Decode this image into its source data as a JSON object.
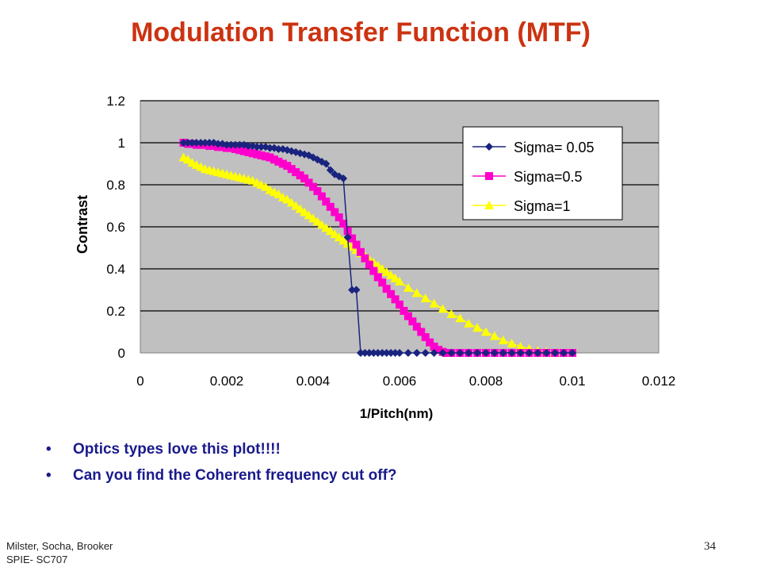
{
  "slide": {
    "title": "Modulation Transfer Function (MTF)",
    "bullets": [
      "Optics types love this plot!!!!",
      "Can you find the Coherent frequency cut off?"
    ],
    "footer_lines": [
      "Milster, Socha, Brooker",
      "SPIE- SC707"
    ],
    "page_number": "34"
  },
  "colors": {
    "title": "#cc3311",
    "bullet_text": "#1a1a8c",
    "plot_background": "#c0c0c0"
  },
  "chart_data": {
    "type": "line",
    "title": "",
    "xlabel": "1/Pitch(nm)",
    "ylabel": "Contrast",
    "xlim": [
      0,
      0.012
    ],
    "ylim": [
      0,
      1.2
    ],
    "xticks": [
      "0",
      "0.002",
      "0.004",
      "0.006",
      "0.008",
      "0.01",
      "0.012"
    ],
    "yticks": [
      "0",
      "0.2",
      "0.4",
      "0.6",
      "0.8",
      "1",
      "1.2"
    ],
    "grid": true,
    "legend_position": "top-right",
    "series": [
      {
        "name": "Sigma= 0.05",
        "color": "#1a237e",
        "marker": "diamond",
        "x": [
          0.001,
          0.0011,
          0.0012,
          0.0013,
          0.0014,
          0.0015,
          0.0016,
          0.0017,
          0.0018,
          0.0019,
          0.002,
          0.0021,
          0.0022,
          0.0023,
          0.0024,
          0.0025,
          0.0026,
          0.0027,
          0.0028,
          0.0029,
          0.003,
          0.0031,
          0.0032,
          0.0033,
          0.0034,
          0.0035,
          0.0036,
          0.0037,
          0.0038,
          0.0039,
          0.004,
          0.0041,
          0.0042,
          0.0043,
          0.0044,
          0.0045,
          0.0046,
          0.0047,
          0.0048,
          0.0049,
          0.005,
          0.0051,
          0.0052,
          0.0053,
          0.0054,
          0.0055,
          0.0056,
          0.0057,
          0.0058,
          0.0059,
          0.006,
          0.0062,
          0.0064,
          0.0066,
          0.0068,
          0.007,
          0.0072,
          0.0074,
          0.0076,
          0.0078,
          0.008,
          0.0082,
          0.0084,
          0.0086,
          0.0088,
          0.009,
          0.0092,
          0.0094,
          0.0096,
          0.0098,
          0.01
        ],
        "y": [
          1,
          1,
          1,
          1,
          1,
          1,
          1,
          1,
          0.995,
          0.995,
          0.99,
          0.99,
          0.99,
          0.99,
          0.99,
          0.985,
          0.985,
          0.98,
          0.98,
          0.98,
          0.975,
          0.975,
          0.97,
          0.97,
          0.965,
          0.96,
          0.955,
          0.95,
          0.945,
          0.94,
          0.93,
          0.92,
          0.91,
          0.9,
          0.87,
          0.85,
          0.84,
          0.83,
          0.55,
          0.3,
          0.3,
          0,
          0,
          0,
          0,
          0,
          0,
          0,
          0,
          0,
          0,
          0,
          0,
          0,
          0,
          0,
          0,
          0,
          0,
          0,
          0,
          0,
          0,
          0,
          0,
          0,
          0,
          0,
          0,
          0,
          0
        ]
      },
      {
        "name": "Sigma=0.5",
        "color": "#ff00cc",
        "marker": "square",
        "x": [
          0.001,
          0.0011,
          0.0012,
          0.0013,
          0.0014,
          0.0015,
          0.0016,
          0.0017,
          0.0018,
          0.0019,
          0.002,
          0.0021,
          0.0022,
          0.0023,
          0.0024,
          0.0025,
          0.0026,
          0.0027,
          0.0028,
          0.0029,
          0.003,
          0.0031,
          0.0032,
          0.0033,
          0.0034,
          0.0035,
          0.0036,
          0.0037,
          0.0038,
          0.0039,
          0.004,
          0.0041,
          0.0042,
          0.0043,
          0.0044,
          0.0045,
          0.0046,
          0.0047,
          0.0048,
          0.0049,
          0.005,
          0.0051,
          0.0052,
          0.0053,
          0.0054,
          0.0055,
          0.0056,
          0.0057,
          0.0058,
          0.0059,
          0.006,
          0.0061,
          0.0062,
          0.0063,
          0.0064,
          0.0065,
          0.0066,
          0.0067,
          0.0068,
          0.0069,
          0.007,
          0.0071,
          0.0072,
          0.0074,
          0.0076,
          0.0078,
          0.008,
          0.0082,
          0.0084,
          0.0086,
          0.0088,
          0.009,
          0.0092,
          0.0094,
          0.0096,
          0.0098,
          0.01
        ],
        "y": [
          1,
          0.995,
          0.995,
          0.99,
          0.99,
          0.99,
          0.985,
          0.985,
          0.98,
          0.98,
          0.975,
          0.975,
          0.97,
          0.965,
          0.96,
          0.955,
          0.95,
          0.945,
          0.94,
          0.935,
          0.93,
          0.92,
          0.91,
          0.9,
          0.89,
          0.875,
          0.86,
          0.845,
          0.83,
          0.81,
          0.79,
          0.77,
          0.745,
          0.72,
          0.695,
          0.67,
          0.645,
          0.615,
          0.58,
          0.545,
          0.515,
          0.48,
          0.45,
          0.42,
          0.39,
          0.36,
          0.335,
          0.305,
          0.28,
          0.255,
          0.23,
          0.2,
          0.175,
          0.15,
          0.125,
          0.1,
          0.075,
          0.05,
          0.03,
          0.015,
          0.005,
          0,
          0,
          0,
          0,
          0,
          0,
          0,
          0,
          0,
          0,
          0,
          0,
          0,
          0,
          0,
          0
        ]
      },
      {
        "name": "Sigma=1",
        "color": "#ffff00",
        "marker": "triangle",
        "x": [
          0.001,
          0.0011,
          0.0012,
          0.0013,
          0.0014,
          0.0015,
          0.0016,
          0.0017,
          0.0018,
          0.0019,
          0.002,
          0.0021,
          0.0022,
          0.0023,
          0.0024,
          0.0025,
          0.0026,
          0.0027,
          0.0028,
          0.0029,
          0.003,
          0.0031,
          0.0032,
          0.0033,
          0.0034,
          0.0035,
          0.0036,
          0.0037,
          0.0038,
          0.0039,
          0.004,
          0.0041,
          0.0042,
          0.0043,
          0.0044,
          0.0045,
          0.0046,
          0.0047,
          0.0048,
          0.0049,
          0.005,
          0.0051,
          0.0052,
          0.0053,
          0.0054,
          0.0055,
          0.0056,
          0.0057,
          0.0058,
          0.0059,
          0.006,
          0.0062,
          0.0064,
          0.0066,
          0.0068,
          0.007,
          0.0072,
          0.0074,
          0.0076,
          0.0078,
          0.008,
          0.0082,
          0.0084,
          0.0086,
          0.0088,
          0.009,
          0.0092,
          0.0094,
          0.0096,
          0.0098,
          0.01
        ],
        "y": [
          0.93,
          0.92,
          0.905,
          0.895,
          0.885,
          0.875,
          0.87,
          0.865,
          0.86,
          0.855,
          0.85,
          0.845,
          0.84,
          0.835,
          0.83,
          0.825,
          0.82,
          0.81,
          0.8,
          0.79,
          0.775,
          0.765,
          0.755,
          0.74,
          0.73,
          0.715,
          0.7,
          0.685,
          0.67,
          0.655,
          0.64,
          0.625,
          0.61,
          0.595,
          0.58,
          0.565,
          0.55,
          0.535,
          0.52,
          0.505,
          0.49,
          0.475,
          0.46,
          0.445,
          0.43,
          0.415,
          0.4,
          0.385,
          0.37,
          0.355,
          0.34,
          0.31,
          0.285,
          0.26,
          0.235,
          0.21,
          0.185,
          0.165,
          0.14,
          0.12,
          0.1,
          0.08,
          0.06,
          0.045,
          0.03,
          0.02,
          0.01,
          0.005,
          0,
          0,
          0
        ]
      }
    ]
  }
}
